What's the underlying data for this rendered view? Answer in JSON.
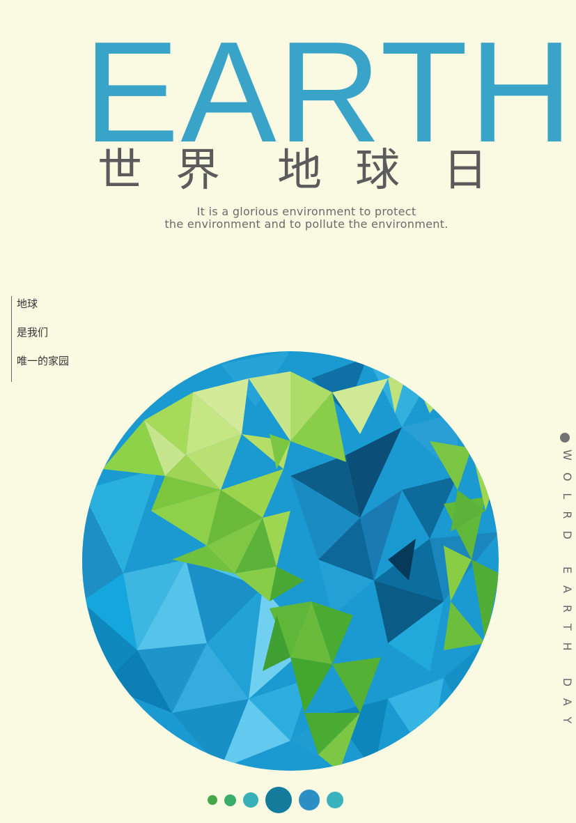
{
  "title": "EARTH",
  "subtitle_cn": [
    "世",
    "界",
    "地",
    "球",
    "日"
  ],
  "tagline": {
    "line1": "It is a glorious environment to protect",
    "line2": "the environment and to pollute the environment."
  },
  "side_notes": [
    "地球",
    "是我们",
    "唯一的家园"
  ],
  "vertical_text": "WOLRD EARTH DAY",
  "colors": {
    "background": "#fafae3",
    "title": "#3aa3c8",
    "ocean": "#1f9fd4",
    "land": "#7cc645"
  },
  "pager": {
    "dot_count": 6,
    "active_index": 3
  }
}
